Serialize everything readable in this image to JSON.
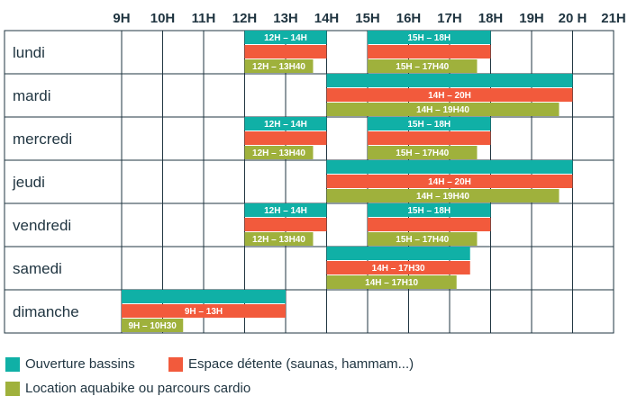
{
  "chart_data": {
    "type": "bar",
    "orientation": "horizontal",
    "hours": [
      "9H",
      "10H",
      "11H",
      "12H",
      "13H",
      "14H",
      "15H",
      "16H",
      "17H",
      "18H",
      "19H",
      "20 H",
      "21H"
    ],
    "x_range": [
      9,
      21
    ],
    "grid": true,
    "legend_position": "bottom-left",
    "days": [
      {
        "name": "lundi",
        "slots": [
          {
            "series": "bassins",
            "start": 12,
            "end": 14,
            "label": "12H – 14H"
          },
          {
            "series": "detente",
            "start": 12,
            "end": 14,
            "label": ""
          },
          {
            "series": "aquabike",
            "start": 12,
            "end": 13.67,
            "label": "12H – 13H40"
          },
          {
            "series": "bassins",
            "start": 15,
            "end": 18,
            "label": "15H – 18H"
          },
          {
            "series": "detente",
            "start": 15,
            "end": 18,
            "label": ""
          },
          {
            "series": "aquabike",
            "start": 15,
            "end": 17.67,
            "label": "15H – 17H40"
          }
        ]
      },
      {
        "name": "mardi",
        "slots": [
          {
            "series": "bassins",
            "start": 14,
            "end": 20,
            "label": ""
          },
          {
            "series": "detente",
            "start": 14,
            "end": 20,
            "label": "14H – 20H"
          },
          {
            "series": "aquabike",
            "start": 14,
            "end": 19.67,
            "label": "14H – 19H40"
          }
        ]
      },
      {
        "name": "mercredi",
        "slots": [
          {
            "series": "bassins",
            "start": 12,
            "end": 14,
            "label": "12H – 14H"
          },
          {
            "series": "detente",
            "start": 12,
            "end": 14,
            "label": ""
          },
          {
            "series": "aquabike",
            "start": 12,
            "end": 13.67,
            "label": "12H – 13H40"
          },
          {
            "series": "bassins",
            "start": 15,
            "end": 18,
            "label": "15H – 18H"
          },
          {
            "series": "detente",
            "start": 15,
            "end": 18,
            "label": ""
          },
          {
            "series": "aquabike",
            "start": 15,
            "end": 17.67,
            "label": "15H – 17H40"
          }
        ]
      },
      {
        "name": "jeudi",
        "slots": [
          {
            "series": "bassins",
            "start": 14,
            "end": 20,
            "label": ""
          },
          {
            "series": "detente",
            "start": 14,
            "end": 20,
            "label": "14H – 20H"
          },
          {
            "series": "aquabike",
            "start": 14,
            "end": 19.67,
            "label": "14H – 19H40"
          }
        ]
      },
      {
        "name": "vendredi",
        "slots": [
          {
            "series": "bassins",
            "start": 12,
            "end": 14,
            "label": "12H – 14H"
          },
          {
            "series": "detente",
            "start": 12,
            "end": 14,
            "label": ""
          },
          {
            "series": "aquabike",
            "start": 12,
            "end": 13.67,
            "label": "12H – 13H40"
          },
          {
            "series": "bassins",
            "start": 15,
            "end": 18,
            "label": "15H – 18H"
          },
          {
            "series": "detente",
            "start": 15,
            "end": 18,
            "label": ""
          },
          {
            "series": "aquabike",
            "start": 15,
            "end": 17.67,
            "label": "15H – 17H40"
          }
        ]
      },
      {
        "name": "samedi",
        "slots": [
          {
            "series": "bassins",
            "start": 14,
            "end": 17.5,
            "label": ""
          },
          {
            "series": "detente",
            "start": 14,
            "end": 17.5,
            "label": "14H – 17H30"
          },
          {
            "series": "aquabike",
            "start": 14,
            "end": 17.17,
            "label": "14H – 17H10"
          }
        ]
      },
      {
        "name": "dimanche",
        "slots": [
          {
            "series": "bassins",
            "start": 9,
            "end": 13,
            "label": ""
          },
          {
            "series": "detente",
            "start": 9,
            "end": 13,
            "label": "9H – 13H"
          },
          {
            "series": "aquabike",
            "start": 9,
            "end": 10.5,
            "label": "9H – 10H30"
          }
        ]
      }
    ],
    "series": [
      {
        "key": "bassins",
        "name": "Ouverture bassins",
        "color": "#10b0a6"
      },
      {
        "key": "detente",
        "name": "Espace détente (saunas, hammam...)",
        "color": "#f25a3c"
      },
      {
        "key": "aquabike",
        "name": "Location aquabike ou parcours cardio",
        "color": "#9fb13c"
      }
    ]
  }
}
